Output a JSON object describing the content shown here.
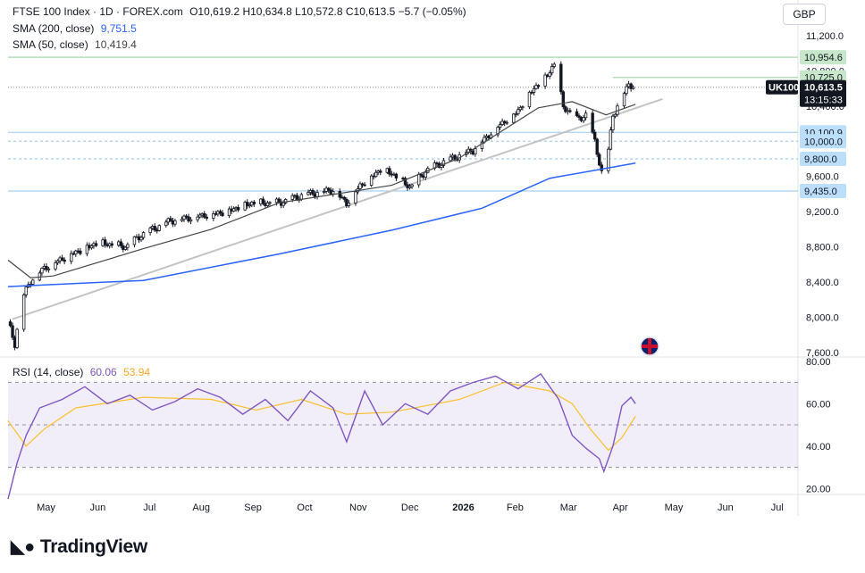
{
  "header": {
    "symbol": "FTSE 100 Index · 1D · FOREX.com",
    "ohlc": "O10,619.2  H10,634.8  L10,572.8  C10,613.5  −5.7 (−0.05%)",
    "sma200_label": "SMA (200, close)",
    "sma200_value": "9,751.5",
    "sma50_label": "SMA (50, close)",
    "sma50_value": "10,419.4",
    "currency": "GBP"
  },
  "rsi": {
    "label": "RSI (14, close)",
    "value": "60.06",
    "ma_value": "53.94"
  },
  "brand": {
    "name": "TradingView"
  },
  "colors": {
    "up": "#131722",
    "sma200": "#2962ff",
    "sma50": "#454545",
    "rsi": "#7e57c2",
    "rsi_ma": "#fbc02d",
    "level_line": "#c8e6c9",
    "support": "#bbdefb"
  },
  "chart_data": [
    {
      "type": "candlestick",
      "title": "FTSE 100 Index · 1D · FOREX.com",
      "x_ticks": [
        "May",
        "Jun",
        "Jul",
        "Aug",
        "Sep",
        "Oct",
        "Nov",
        "Dec",
        "2026",
        "Feb",
        "Mar",
        "Apr",
        "May",
        "Jun",
        "Jul"
      ],
      "y_ticks": [
        "11,200.0",
        "10,800.0",
        "10,400.0",
        "9,600.0",
        "9,200.0",
        "8,800.0",
        "8,400.0",
        "8,000.0",
        "7,600.0"
      ],
      "ylim": [
        7550,
        11300
      ],
      "price_path": [
        [
          0,
          7950
        ],
        [
          3,
          7700
        ],
        [
          6,
          8200
        ],
        [
          10,
          8420
        ],
        [
          16,
          8560
        ],
        [
          28,
          8720
        ],
        [
          40,
          8850
        ],
        [
          52,
          8800
        ],
        [
          60,
          8950
        ],
        [
          72,
          9100
        ],
        [
          84,
          9150
        ],
        [
          96,
          9200
        ],
        [
          108,
          9300
        ],
        [
          120,
          9300
        ],
        [
          132,
          9400
        ],
        [
          144,
          9450
        ],
        [
          150,
          9300
        ],
        [
          156,
          9500
        ],
        [
          166,
          9700
        ],
        [
          172,
          9600
        ],
        [
          178,
          9480
        ],
        [
          186,
          9680
        ],
        [
          196,
          9800
        ],
        [
          206,
          9900
        ],
        [
          216,
          10150
        ],
        [
          226,
          10350
        ],
        [
          232,
          10580
        ],
        [
          238,
          10720
        ],
        [
          242,
          10880
        ],
        [
          246,
          10400
        ],
        [
          252,
          10250
        ],
        [
          256,
          10300
        ],
        [
          260,
          10000
        ],
        [
          263,
          9650
        ],
        [
          266,
          9900
        ],
        [
          268,
          10300
        ],
        [
          272,
          10500
        ],
        [
          275,
          10650
        ],
        [
          278,
          10620
        ]
      ],
      "sma200": {
        "name": "SMA (200, close)",
        "points": [
          [
            0,
            8350
          ],
          [
            60,
            8420
          ],
          [
            120,
            8720
          ],
          [
            170,
            8990
          ],
          [
            210,
            9240
          ],
          [
            240,
            9580
          ],
          [
            278,
            9751.5
          ]
        ]
      },
      "sma50": {
        "name": "SMA (50, close)",
        "points": [
          [
            0,
            8650
          ],
          [
            10,
            8450
          ],
          [
            20,
            8470
          ],
          [
            60,
            8780
          ],
          [
            90,
            9000
          ],
          [
            120,
            9300
          ],
          [
            170,
            9500
          ],
          [
            200,
            9810
          ],
          [
            235,
            10380
          ],
          [
            250,
            10450
          ],
          [
            265,
            10300
          ],
          [
            278,
            10419.4
          ]
        ]
      },
      "trendline": [
        [
          2,
          7980
        ],
        [
          290,
          10480
        ]
      ],
      "levels": [
        {
          "value": 10954.6,
          "label": "10,954.6",
          "kind": "green"
        },
        {
          "value": 10725.0,
          "label": "10,725.0",
          "kind": "green"
        },
        {
          "value": 10100.9,
          "label": "10,100.9",
          "kind": "blue"
        },
        {
          "value": 10000.0,
          "label": "10,000.0",
          "kind": "blue-dash"
        },
        {
          "value": 9800.0,
          "label": "9,800.0",
          "kind": "blue-dash"
        },
        {
          "value": 9435.0,
          "label": "9,435.0",
          "kind": "blue"
        }
      ],
      "last_price": {
        "symbol": "UK100",
        "value": "10,613.5",
        "countdown": "13:15:33"
      }
    },
    {
      "type": "line",
      "title": "RSI (14, close)",
      "y_ticks": [
        "80.00",
        "60.00",
        "40.00",
        "20.00"
      ],
      "ylim": [
        18,
        82
      ],
      "bands": [
        70,
        50,
        30
      ],
      "rsi_path": [
        [
          0,
          15
        ],
        [
          4,
          32
        ],
        [
          8,
          45
        ],
        [
          14,
          58
        ],
        [
          24,
          62
        ],
        [
          34,
          68
        ],
        [
          44,
          60
        ],
        [
          54,
          64
        ],
        [
          64,
          57
        ],
        [
          74,
          61
        ],
        [
          84,
          67
        ],
        [
          94,
          63
        ],
        [
          104,
          55
        ],
        [
          114,
          62
        ],
        [
          124,
          52
        ],
        [
          134,
          66
        ],
        [
          144,
          58
        ],
        [
          150,
          42
        ],
        [
          158,
          66
        ],
        [
          166,
          50
        ],
        [
          176,
          60
        ],
        [
          186,
          55
        ],
        [
          196,
          66
        ],
        [
          206,
          70
        ],
        [
          216,
          73
        ],
        [
          226,
          67
        ],
        [
          236,
          74
        ],
        [
          244,
          62
        ],
        [
          250,
          45
        ],
        [
          256,
          39
        ],
        [
          262,
          34
        ],
        [
          264,
          28
        ],
        [
          268,
          40
        ],
        [
          272,
          59
        ],
        [
          276,
          63
        ],
        [
          278,
          60
        ]
      ],
      "rsi_ma_path": [
        [
          0,
          52
        ],
        [
          8,
          40
        ],
        [
          16,
          48
        ],
        [
          30,
          58
        ],
        [
          60,
          63
        ],
        [
          90,
          62
        ],
        [
          110,
          57
        ],
        [
          130,
          62
        ],
        [
          150,
          55
        ],
        [
          170,
          56
        ],
        [
          200,
          62
        ],
        [
          220,
          70
        ],
        [
          240,
          66
        ],
        [
          250,
          60
        ],
        [
          258,
          48
        ],
        [
          266,
          38
        ],
        [
          272,
          44
        ],
        [
          278,
          54
        ]
      ]
    }
  ]
}
